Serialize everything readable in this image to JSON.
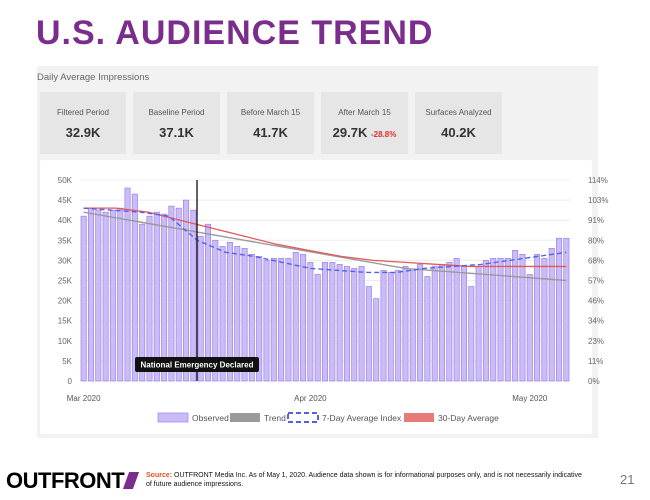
{
  "page": {
    "title": "U.S. AUDIENCE TREND",
    "section_label": "Daily Average Impressions",
    "logo": "OUTFRONT",
    "source_label": "Source:",
    "source_text": "OUTFRONT Media Inc.  As of May 1, 2020. Audience data shown is for informational purposes only, and is not necessarily indicative of future audience impressions.",
    "page_number": "21"
  },
  "stats": [
    {
      "label": "Filtered Period",
      "value": "32.9K",
      "change": ""
    },
    {
      "label": "Baseline Period",
      "value": "37.1K",
      "change": ""
    },
    {
      "label": "Before March 15",
      "value": "41.7K",
      "change": ""
    },
    {
      "label": "After March 15",
      "value": "29.7K",
      "change": "-28.8%"
    },
    {
      "label": "Surfaces Analyzed",
      "value": "40.2K",
      "change": ""
    }
  ],
  "colors": {
    "title": "#7b2d8e",
    "bar_fill": "#cbbcf7",
    "bar_stroke": "#9a85e8",
    "trend": "#9a9a9a",
    "index": "#5560e8",
    "avg30": "#e05a5a",
    "annotation_bg": "#111111"
  },
  "chart_data": {
    "type": "bar",
    "title": "",
    "xlabel": "",
    "ylabel": "",
    "ylim": [
      0,
      50000
    ],
    "y_ticks": [
      "0",
      "5K",
      "10K",
      "15K",
      "20K",
      "25K",
      "30K",
      "35K",
      "40K",
      "45K",
      "50K"
    ],
    "y2lim": [
      0,
      114
    ],
    "y2_ticks": [
      "0%",
      "11%",
      "23%",
      "34%",
      "46%",
      "57%",
      "68%",
      "80%",
      "91%",
      "103%",
      "114%"
    ],
    "x_labels": [
      {
        "index": 0,
        "label": "Mar 2020"
      },
      {
        "index": 31,
        "label": "Apr 2020"
      },
      {
        "index": 61,
        "label": "May 2020"
      }
    ],
    "observed": [
      41000,
      43000,
      42500,
      42000,
      42500,
      43000,
      48000,
      46500,
      39000,
      41000,
      42000,
      41500,
      43500,
      43000,
      45000,
      42500,
      36000,
      39000,
      35000,
      33500,
      34500,
      33500,
      33000,
      31500,
      31000,
      30000,
      30500,
      30500,
      30500,
      32000,
      31500,
      29500,
      26500,
      29500,
      29500,
      29000,
      28500,
      28000,
      28500,
      23500,
      20500,
      27500,
      27000,
      27500,
      28500,
      27500,
      29000,
      26000,
      28500,
      29000,
      29500,
      30500,
      28500,
      23500,
      28500,
      30000,
      30500,
      30500,
      30500,
      32500,
      31500,
      26500,
      31500,
      30500,
      33000,
      35500,
      35500
    ],
    "trend": [
      42000,
      35000,
      28000,
      25000
    ],
    "index_7day": [
      43000,
      42500,
      42000,
      41000,
      35000,
      32000,
      31000,
      29500,
      28000,
      27500,
      27000,
      27000,
      28000,
      28500,
      29000,
      30000,
      31000,
      32000
    ],
    "avg_30day": [
      43000,
      43000,
      42000,
      40000,
      38000,
      36000,
      34000,
      32500,
      31000,
      30000,
      29500,
      29000,
      28500,
      28500,
      28500,
      28500
    ],
    "legend": [
      {
        "key": "observed",
        "label": "Observed"
      },
      {
        "key": "trend",
        "label": "Trend"
      },
      {
        "key": "index",
        "label": "7-Day Average Index"
      },
      {
        "key": "avg30",
        "label": "30-Day Average"
      }
    ],
    "annotation": {
      "text": "National Emergency Declared",
      "index": 15
    }
  }
}
